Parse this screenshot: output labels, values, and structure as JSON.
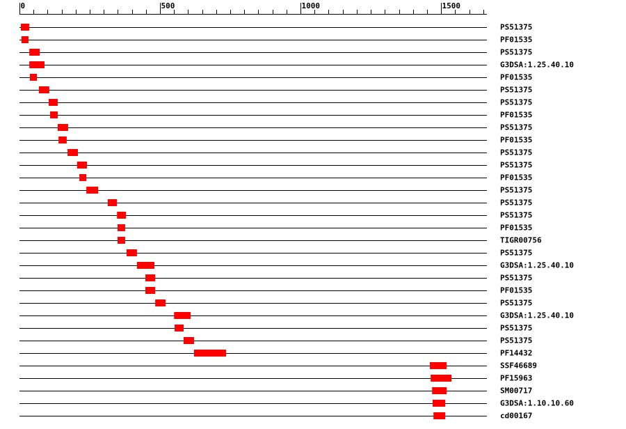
{
  "chart_data": {
    "type": "range",
    "categories": [
      "PS51375",
      "PF01535",
      "PS51375",
      "G3DSA:1.25.40.10",
      "PF01535",
      "PS51375",
      "PS51375",
      "PF01535",
      "PS51375",
      "PF01535",
      "PS51375",
      "PS51375",
      "PF01535",
      "PS51375",
      "PS51375",
      "PS51375",
      "PF01535",
      "TIGR00756",
      "PS51375",
      "G3DSA:1.25.40.10",
      "PS51375",
      "PF01535",
      "PS51375",
      "G3DSA:1.25.40.10",
      "PS51375",
      "PS51375",
      "PF14432",
      "SSF46689",
      "PF15963",
      "SM00717",
      "G3DSA:1.10.10.60",
      "cd00167"
    ],
    "starts": [
      5,
      7,
      35,
      35,
      37,
      69,
      104,
      109,
      136,
      139,
      171,
      205,
      213,
      238,
      314,
      347,
      349,
      349,
      381,
      418,
      448,
      448,
      483,
      550,
      552,
      584,
      621,
      1460,
      1463,
      1468,
      1470,
      1473
    ],
    "ends": [
      35,
      32,
      72,
      89,
      62,
      106,
      136,
      136,
      173,
      168,
      208,
      240,
      238,
      280,
      347,
      379,
      376,
      376,
      418,
      480,
      483,
      483,
      520,
      609,
      584,
      621,
      735,
      1520,
      1537,
      1520,
      1515,
      1515
    ],
    "color": "#ff0000",
    "xlim": [
      0,
      1663
    ],
    "xticks": [
      0,
      500,
      1000,
      1500
    ],
    "xminorticks": [
      50,
      100,
      150,
      200,
      250,
      300,
      350,
      400,
      450,
      550,
      600,
      650,
      700,
      750,
      800,
      850,
      900,
      950,
      1050,
      1100,
      1150,
      1200,
      1250,
      1300,
      1350,
      1400,
      1450,
      1550,
      1600,
      1650
    ]
  }
}
